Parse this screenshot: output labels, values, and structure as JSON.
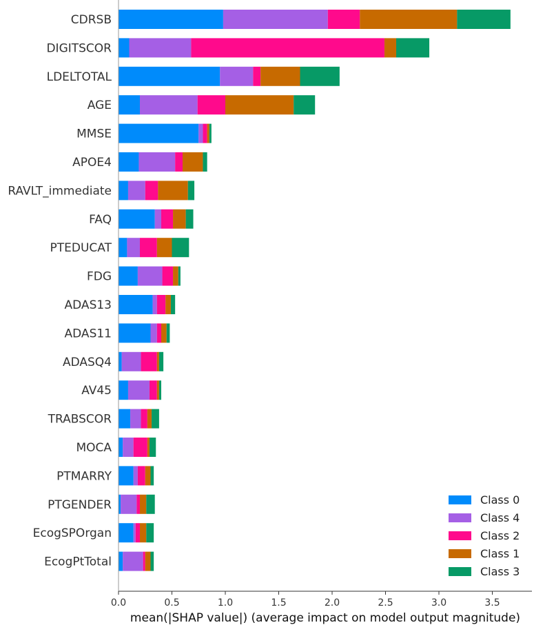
{
  "chart_data": {
    "type": "bar",
    "orientation": "horizontal",
    "stacked": true,
    "xlabel": "mean(|SHAP value|) (average impact on model output magnitude)",
    "xlim": [
      0,
      3.85
    ],
    "xticks": [
      "0.0",
      "0.5",
      "1.0",
      "1.5",
      "2.0",
      "2.5",
      "3.0",
      "3.5"
    ],
    "legend_position": "bottom-right",
    "colors": {
      "Class 0": "#008bfb",
      "Class 4": "#a55fe5",
      "Class 2": "#ff0a8c",
      "Class 1": "#c76a00",
      "Class 3": "#079a66"
    },
    "legend_order": [
      "Class 0",
      "Class 4",
      "Class 2",
      "Class 1",
      "Class 3"
    ],
    "categories": [
      "CDRSB",
      "DIGITSCOR",
      "LDELTOTAL",
      "AGE",
      "MMSE",
      "APOE4",
      "RAVLT_immediate",
      "FAQ",
      "PTEDUCAT",
      "FDG",
      "ADAS13",
      "ADAS11",
      "ADASQ4",
      "AV45",
      "TRABSCOR",
      "MOCA",
      "PTMARRY",
      "PTGENDER",
      "EcogSPOrgan",
      "EcogPtTotal"
    ],
    "series": [
      {
        "name": "Class 0",
        "values": [
          0.98,
          0.1,
          0.95,
          0.2,
          0.75,
          0.19,
          0.09,
          0.34,
          0.08,
          0.18,
          0.32,
          0.3,
          0.03,
          0.09,
          0.11,
          0.04,
          0.14,
          0.02,
          0.14,
          0.04
        ]
      },
      {
        "name": "Class 4",
        "values": [
          0.98,
          0.58,
          0.31,
          0.54,
          0.04,
          0.34,
          0.16,
          0.06,
          0.12,
          0.23,
          0.04,
          0.06,
          0.18,
          0.2,
          0.1,
          0.1,
          0.04,
          0.15,
          0.02,
          0.19
        ]
      },
      {
        "name": "Class 2",
        "values": [
          0.3,
          1.81,
          0.07,
          0.26,
          0.04,
          0.07,
          0.12,
          0.11,
          0.16,
          0.1,
          0.08,
          0.04,
          0.15,
          0.07,
          0.06,
          0.13,
          0.07,
          0.03,
          0.04,
          0.02
        ]
      },
      {
        "name": "Class 1",
        "values": [
          0.91,
          0.11,
          0.37,
          0.64,
          0.02,
          0.19,
          0.28,
          0.12,
          0.14,
          0.05,
          0.05,
          0.05,
          0.02,
          0.02,
          0.04,
          0.02,
          0.05,
          0.06,
          0.06,
          0.05
        ]
      },
      {
        "name": "Class 3",
        "values": [
          0.5,
          0.31,
          0.37,
          0.2,
          0.02,
          0.04,
          0.06,
          0.07,
          0.16,
          0.02,
          0.04,
          0.03,
          0.04,
          0.02,
          0.07,
          0.06,
          0.03,
          0.08,
          0.07,
          0.03
        ]
      }
    ]
  }
}
